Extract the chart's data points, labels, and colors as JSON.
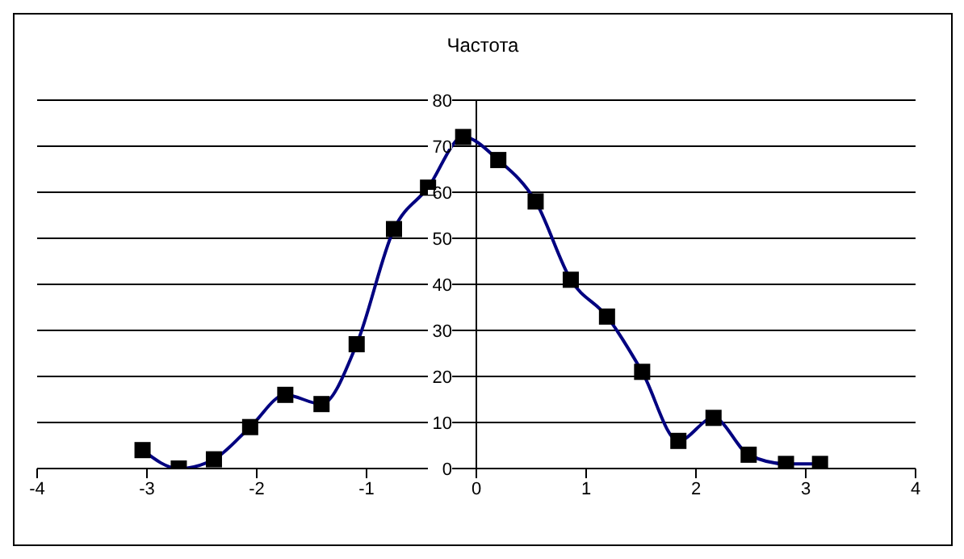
{
  "chart_data": {
    "type": "line",
    "title": "Частота",
    "x": [
      -3.04,
      -2.71,
      -2.39,
      -2.06,
      -1.74,
      -1.41,
      -1.09,
      -0.75,
      -0.44,
      -0.12,
      0.2,
      0.54,
      0.86,
      1.19,
      1.51,
      1.84,
      2.16,
      2.48,
      2.82,
      3.13
    ],
    "series": [
      {
        "color": "#000080",
        "values": [
          4,
          0,
          2,
          9,
          16,
          14,
          27,
          52,
          61,
          72,
          67,
          58,
          41,
          33,
          21,
          6,
          11,
          3,
          1,
          1
        ]
      }
    ],
    "xlim": [
      -4,
      4
    ],
    "xticks": [
      -4,
      -3,
      -2,
      -1,
      0,
      1,
      2,
      3,
      4
    ],
    "ylim": [
      0,
      80
    ],
    "yticks": [
      0,
      10,
      20,
      30,
      40,
      50,
      60,
      70,
      80
    ],
    "grid": "y",
    "marker": "square"
  }
}
